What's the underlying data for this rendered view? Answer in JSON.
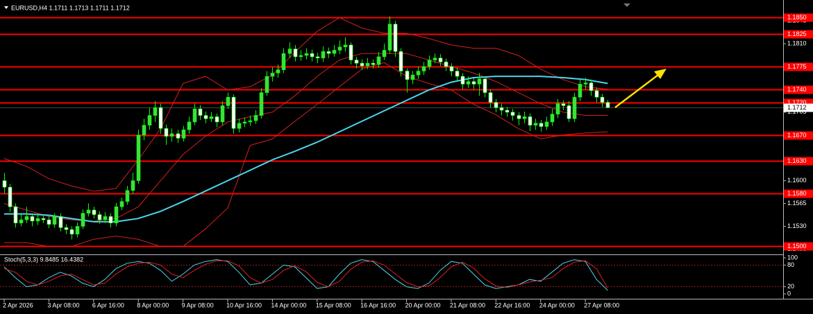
{
  "chart_data": [
    {
      "type": "candlestick",
      "title": "EURUSD,H4  1.1711 1.1713 1.1711 1.1712",
      "up_color": "#3de03d",
      "down_color": "#ffffff",
      "wick_color": "#00ff00",
      "xlim": [
        -0.75,
        139.4
      ],
      "xticks": [
        {
          "value": 0,
          "label": "2 Apr 2026"
        },
        {
          "value": 8,
          "label": "3 Apr 08:00"
        },
        {
          "value": 16,
          "label": "6 Apr 16:00"
        },
        {
          "value": 24,
          "label": "8 Apr 00:00"
        },
        {
          "value": 32,
          "label": "9 Apr 08:00"
        },
        {
          "value": 40,
          "label": "10 Apr 16:00"
        },
        {
          "value": 48,
          "label": "14 Apr 00:00"
        },
        {
          "value": 56,
          "label": "15 Apr 08:00"
        },
        {
          "value": 64,
          "label": "16 Apr 16:00"
        },
        {
          "value": 72,
          "label": "20 Apr 00:00"
        },
        {
          "value": 80,
          "label": "21 Apr 08:00"
        },
        {
          "value": 88,
          "label": "22 Apr 16:00"
        },
        {
          "value": 96,
          "label": "24 Apr 00:00"
        },
        {
          "value": 104,
          "label": "27 Apr 08:00"
        }
      ],
      "ylim": [
        1.1488,
        1.1877
      ],
      "yticks": [
        1.1845,
        {
          "value": 1.181,
          "label": "1.1810"
        },
        1.1705,
        {
          "value": 1.16,
          "label": "1.1600"
        },
        1.1565,
        {
          "value": 1.153,
          "label": "1.1530"
        },
        1.1495
      ],
      "level_color": "#ff0000",
      "levels": [
        {
          "value": 1.185,
          "label": "1.1850"
        },
        {
          "value": 1.1825,
          "label": "1.1825"
        },
        {
          "value": 1.1775,
          "label": "1.1775"
        },
        {
          "value": 1.174,
          "label": "1.1740"
        },
        {
          "value": 1.172,
          "label": "1.1720"
        },
        {
          "value": 1.167,
          "label": "1.1670"
        },
        {
          "value": 1.163,
          "label": "1.1630"
        },
        {
          "value": 1.158,
          "label": "1.1580"
        },
        {
          "value": 1.15,
          "label": "1.1500"
        }
      ],
      "last_price": 1.1712,
      "candles": [
        [
          1.16,
          1.1612,
          1.158,
          1.159
        ],
        [
          1.159,
          1.1595,
          1.1552,
          1.156
        ],
        [
          1.156,
          1.1565,
          1.1528,
          1.1535
        ],
        [
          1.1535,
          1.1548,
          1.153,
          1.154
        ],
        [
          1.154,
          1.156,
          1.1535,
          1.1545
        ],
        [
          1.1545,
          1.155,
          1.153,
          1.1538
        ],
        [
          1.1538,
          1.1548,
          1.1532,
          1.1542
        ],
        [
          1.1542,
          1.1547,
          1.1535,
          1.154
        ],
        [
          1.154,
          1.1545,
          1.1527,
          1.1533
        ],
        [
          1.1533,
          1.155,
          1.1528,
          1.1545
        ],
        [
          1.1545,
          1.155,
          1.1522,
          1.1528
        ],
        [
          1.1528,
          1.1533,
          1.1518,
          1.1525
        ],
        [
          1.1525,
          1.153,
          1.151,
          1.1518
        ],
        [
          1.1518,
          1.1536,
          1.1513,
          1.153
        ],
        [
          1.153,
          1.1556,
          1.1526,
          1.155
        ],
        [
          1.155,
          1.1565,
          1.1545,
          1.1555
        ],
        [
          1.1555,
          1.156,
          1.1542,
          1.1548
        ],
        [
          1.1548,
          1.1553,
          1.1534,
          1.154
        ],
        [
          1.154,
          1.1552,
          1.1535,
          1.1545
        ],
        [
          1.1545,
          1.155,
          1.1528,
          1.1535
        ],
        [
          1.1535,
          1.1566,
          1.153,
          1.156
        ],
        [
          1.156,
          1.1574,
          1.1555,
          1.1568
        ],
        [
          1.1568,
          1.1592,
          1.1563,
          1.1585
        ],
        [
          1.1585,
          1.1612,
          1.158,
          1.16
        ],
        [
          1.16,
          1.1678,
          1.1595,
          1.167
        ],
        [
          1.167,
          1.1695,
          1.1662,
          1.1685
        ],
        [
          1.1685,
          1.1712,
          1.1678,
          1.17
        ],
        [
          1.17,
          1.1722,
          1.169,
          1.1712
        ],
        [
          1.1712,
          1.1718,
          1.1672,
          1.168
        ],
        [
          1.168,
          1.1686,
          1.1655,
          1.1668
        ],
        [
          1.1668,
          1.168,
          1.166,
          1.1672
        ],
        [
          1.1672,
          1.1678,
          1.1658,
          1.1665
        ],
        [
          1.1665,
          1.1684,
          1.166,
          1.1678
        ],
        [
          1.1678,
          1.1698,
          1.1672,
          1.169
        ],
        [
          1.169,
          1.1718,
          1.1685,
          1.171
        ],
        [
          1.171,
          1.1716,
          1.1693,
          1.17
        ],
        [
          1.17,
          1.1706,
          1.1688,
          1.1695
        ],
        [
          1.1695,
          1.1705,
          1.169,
          1.1698
        ],
        [
          1.1698,
          1.1703,
          1.1682,
          1.169
        ],
        [
          1.169,
          1.1722,
          1.1685,
          1.1715
        ],
        [
          1.1715,
          1.1735,
          1.171,
          1.1728
        ],
        [
          1.1728,
          1.1732,
          1.1672,
          1.168
        ],
        [
          1.168,
          1.1695,
          1.1674,
          1.1688
        ],
        [
          1.1688,
          1.1697,
          1.1682,
          1.169
        ],
        [
          1.169,
          1.17,
          1.1684,
          1.1692
        ],
        [
          1.1692,
          1.1708,
          1.1687,
          1.17
        ],
        [
          1.17,
          1.1742,
          1.1695,
          1.1735
        ],
        [
          1.1735,
          1.1768,
          1.173,
          1.176
        ],
        [
          1.176,
          1.1774,
          1.1752,
          1.1765
        ],
        [
          1.1765,
          1.1778,
          1.1758,
          1.177
        ],
        [
          1.177,
          1.1803,
          1.1765,
          1.1795
        ],
        [
          1.1795,
          1.1812,
          1.1788,
          1.1802
        ],
        [
          1.1802,
          1.1808,
          1.1783,
          1.179
        ],
        [
          1.179,
          1.18,
          1.1784,
          1.1792
        ],
        [
          1.1792,
          1.1803,
          1.1786,
          1.1795
        ],
        [
          1.1795,
          1.1801,
          1.1783,
          1.179
        ],
        [
          1.179,
          1.1796,
          1.178,
          1.1788
        ],
        [
          1.1788,
          1.1806,
          1.1782,
          1.1798
        ],
        [
          1.1798,
          1.1804,
          1.1788,
          1.1795
        ],
        [
          1.1795,
          1.1808,
          1.179,
          1.18
        ],
        [
          1.18,
          1.1815,
          1.1794,
          1.1805
        ],
        [
          1.1805,
          1.182,
          1.1798,
          1.1808
        ],
        [
          1.1808,
          1.1812,
          1.1778,
          1.1785
        ],
        [
          1.1785,
          1.179,
          1.1772,
          1.178
        ],
        [
          1.178,
          1.1786,
          1.177,
          1.1776
        ],
        [
          1.1776,
          1.1788,
          1.1771,
          1.178
        ],
        [
          1.178,
          1.1786,
          1.1772,
          1.1778
        ],
        [
          1.1778,
          1.1797,
          1.1773,
          1.179
        ],
        [
          1.179,
          1.181,
          1.1785,
          1.18
        ],
        [
          1.18,
          1.1852,
          1.1795,
          1.184
        ],
        [
          1.184,
          1.1845,
          1.179,
          1.1798
        ],
        [
          1.1798,
          1.1803,
          1.176,
          1.1768
        ],
        [
          1.1768,
          1.1772,
          1.1735,
          1.1755
        ],
        [
          1.1755,
          1.1768,
          1.1748,
          1.1762
        ],
        [
          1.1762,
          1.1775,
          1.1756,
          1.1768
        ],
        [
          1.1768,
          1.1782,
          1.1762,
          1.1775
        ],
        [
          1.1775,
          1.1792,
          1.177,
          1.1785
        ],
        [
          1.1785,
          1.1795,
          1.178,
          1.1788
        ],
        [
          1.1788,
          1.1794,
          1.1776,
          1.1782
        ],
        [
          1.1782,
          1.1787,
          1.1768,
          1.1775
        ],
        [
          1.1775,
          1.178,
          1.176,
          1.1768
        ],
        [
          1.1768,
          1.1773,
          1.1752,
          1.176
        ],
        [
          1.176,
          1.1765,
          1.174,
          1.1748
        ],
        [
          1.1748,
          1.176,
          1.1742,
          1.1752
        ],
        [
          1.1752,
          1.1757,
          1.174,
          1.1748
        ],
        [
          1.1748,
          1.1765,
          1.173,
          1.1756
        ],
        [
          1.1756,
          1.176,
          1.1728,
          1.1735
        ],
        [
          1.1735,
          1.174,
          1.1712,
          1.172
        ],
        [
          1.172,
          1.1725,
          1.1705,
          1.1712
        ],
        [
          1.1712,
          1.1718,
          1.17,
          1.1708
        ],
        [
          1.1708,
          1.1713,
          1.1698,
          1.1705
        ],
        [
          1.1705,
          1.171,
          1.1692,
          1.17
        ],
        [
          1.17,
          1.1705,
          1.1685,
          1.1695
        ],
        [
          1.1695,
          1.1706,
          1.1688,
          1.1698
        ],
        [
          1.1698,
          1.1703,
          1.1676,
          1.1685
        ],
        [
          1.1685,
          1.1695,
          1.1678,
          1.1688
        ],
        [
          1.1688,
          1.1693,
          1.1675,
          1.1683
        ],
        [
          1.1683,
          1.1698,
          1.1678,
          1.169
        ],
        [
          1.169,
          1.171,
          1.1684,
          1.1702
        ],
        [
          1.1702,
          1.1725,
          1.1696,
          1.1718
        ],
        [
          1.1718,
          1.1723,
          1.1708,
          1.1715
        ],
        [
          1.1715,
          1.1722,
          1.169,
          1.1695
        ],
        [
          1.1695,
          1.1735,
          1.169,
          1.1728
        ],
        [
          1.1728,
          1.1755,
          1.1722,
          1.1748
        ],
        [
          1.1748,
          1.1758,
          1.174,
          1.175
        ],
        [
          1.175,
          1.1755,
          1.173,
          1.1738
        ],
        [
          1.1738,
          1.1743,
          1.172,
          1.1728
        ],
        [
          1.1728,
          1.1733,
          1.1713,
          1.172
        ],
        [
          1.172,
          1.1724,
          1.1711,
          1.1712
        ]
      ],
      "line_x": [
        0,
        4,
        8,
        12,
        16,
        20,
        24,
        28,
        32,
        36,
        40,
        44,
        48,
        52,
        56,
        60,
        64,
        68,
        72,
        76,
        80,
        84,
        88,
        92,
        96,
        100,
        104,
        108
      ],
      "lines": [
        {
          "color": "#d42020",
          "values": [
            1.1634,
            1.1622,
            1.1603,
            1.1592,
            1.1584,
            1.1588,
            1.1632,
            1.168,
            1.1749,
            1.176,
            1.1739,
            1.1744,
            1.1762,
            1.1797,
            1.1829,
            1.185,
            1.1834,
            1.1826,
            1.1826,
            1.1818,
            1.1808,
            1.1803,
            1.1803,
            1.1792,
            1.1771,
            1.1755,
            1.1744,
            1.174
          ]
        },
        {
          "color": "#d42020",
          "values": [
            1.1565,
            1.1555,
            1.1545,
            1.154,
            1.1538,
            1.1542,
            1.156,
            1.16,
            1.164,
            1.1668,
            1.169,
            1.1698,
            1.1705,
            1.173,
            1.176,
            1.1785,
            1.1795,
            1.1795,
            1.1795,
            1.1785,
            1.1775,
            1.1765,
            1.1752,
            1.1735,
            1.1718,
            1.1705,
            1.17,
            1.17
          ]
        },
        {
          "color": "#d42020",
          "values": [
            1.1505,
            1.1505,
            1.1499,
            1.1499,
            1.151,
            1.1515,
            1.151,
            1.1499,
            1.1499,
            1.1526,
            1.1558,
            1.1654,
            1.1664,
            1.1691,
            1.1717,
            1.1744,
            1.1771,
            1.1781,
            1.176,
            1.1749,
            1.1739,
            1.1717,
            1.1701,
            1.168,
            1.1664,
            1.167,
            1.1673,
            1.1675
          ]
        },
        {
          "color": "#48d8f0",
          "values": [
            1.1549,
            1.1549,
            1.1547,
            1.1542,
            1.1537,
            1.1537,
            1.1542,
            1.1553,
            1.1568,
            1.1584,
            1.16,
            1.1616,
            1.1632,
            1.1645,
            1.1659,
            1.1675,
            1.1691,
            1.1707,
            1.1723,
            1.1739,
            1.1751,
            1.1758,
            1.176,
            1.176,
            1.176,
            1.1758,
            1.1755,
            1.1749
          ]
        }
      ]
    },
    {
      "type": "stochastic",
      "title": "Stoch(5,3,3) 9.8485 16.4382",
      "xlim": [
        -0.75,
        139.4
      ],
      "ylim": [
        -11.5,
        107.7
      ],
      "yticks": [
        100,
        80,
        20,
        0
      ],
      "levels": [
        80,
        20
      ],
      "level_color": "#d42020",
      "x": [
        0,
        2,
        4,
        6,
        8,
        10,
        12,
        14,
        16,
        18,
        20,
        22,
        24,
        26,
        28,
        30,
        32,
        34,
        36,
        38,
        40,
        42,
        44,
        46,
        48,
        50,
        52,
        54,
        56,
        58,
        60,
        62,
        64,
        66,
        68,
        70,
        72,
        74,
        76,
        78,
        80,
        82,
        84,
        86,
        88,
        90,
        92,
        94,
        96,
        98,
        100,
        102,
        104,
        106,
        108
      ],
      "series": [
        {
          "color": "#48d8f0",
          "values": [
            75,
            45,
            20,
            25,
            45,
            60,
            50,
            30,
            20,
            40,
            70,
            85,
            90,
            85,
            65,
            35,
            55,
            80,
            90,
            95,
            90,
            60,
            25,
            30,
            55,
            80,
            75,
            45,
            15,
            20,
            55,
            85,
            95,
            90,
            65,
            40,
            20,
            15,
            30,
            65,
            90,
            85,
            55,
            25,
            15,
            20,
            25,
            40,
            35,
            60,
            85,
            95,
            90,
            40,
            9.8485
          ]
        },
        {
          "color": "#e02020",
          "values": [
            70,
            60,
            35,
            25,
            35,
            50,
            55,
            40,
            25,
            30,
            55,
            75,
            85,
            88,
            80,
            55,
            45,
            65,
            82,
            92,
            92,
            78,
            45,
            30,
            40,
            65,
            78,
            62,
            32,
            20,
            35,
            68,
            88,
            92,
            80,
            55,
            32,
            20,
            22,
            45,
            75,
            88,
            72,
            42,
            22,
            18,
            25,
            33,
            38,
            45,
            70,
            88,
            92,
            70,
            16.4382
          ]
        }
      ]
    }
  ]
}
